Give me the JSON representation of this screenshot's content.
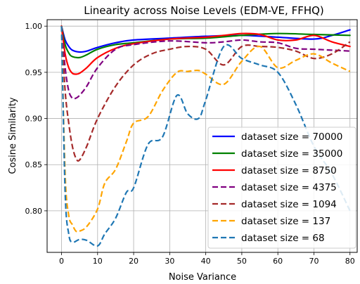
{
  "chart_data": {
    "type": "line",
    "title": "Linearity across Noise Levels (EDM-VE, FFHQ)",
    "xlabel": "Noise Variance",
    "ylabel": "Cosine Similarity",
    "xlim": [
      -4,
      82
    ],
    "ylim": [
      0.755,
      1.007
    ],
    "xticks": [
      0,
      10,
      20,
      30,
      40,
      50,
      60,
      70,
      80
    ],
    "yticks": [
      0.8,
      0.85,
      0.9,
      0.95,
      1.0
    ],
    "ytick_labels": [
      "0.80",
      "0.85",
      "0.90",
      "0.95",
      "1.00"
    ],
    "grid": true,
    "legend_position": "lower-right",
    "series": [
      {
        "name": "dataset size = 70000",
        "color": "#0000ff",
        "dash": "solid",
        "x": [
          0,
          1,
          2,
          3,
          5,
          7,
          10,
          15,
          20,
          30,
          40,
          50,
          60,
          70,
          75,
          80
        ],
        "y": [
          1.0,
          0.985,
          0.978,
          0.974,
          0.972,
          0.973,
          0.977,
          0.982,
          0.985,
          0.987,
          0.989,
          0.99,
          0.988,
          0.986,
          0.99,
          0.996
        ]
      },
      {
        "name": "dataset size = 35000",
        "color": "#008000",
        "dash": "solid",
        "x": [
          0,
          1,
          2,
          3,
          5,
          7,
          10,
          15,
          20,
          30,
          40,
          50,
          60,
          70,
          80
        ],
        "y": [
          1.0,
          0.98,
          0.971,
          0.967,
          0.966,
          0.969,
          0.975,
          0.98,
          0.982,
          0.986,
          0.987,
          0.99,
          0.992,
          0.991,
          0.99
        ]
      },
      {
        "name": "dataset size = 8750",
        "color": "#ff0000",
        "dash": "solid",
        "x": [
          0,
          1,
          2,
          3,
          4,
          5,
          7,
          10,
          15,
          20,
          30,
          40,
          45,
          50,
          55,
          60,
          65,
          70,
          75,
          80
        ],
        "y": [
          1.0,
          0.97,
          0.955,
          0.949,
          0.948,
          0.949,
          0.955,
          0.966,
          0.976,
          0.981,
          0.986,
          0.988,
          0.99,
          0.992,
          0.991,
          0.985,
          0.985,
          0.99,
          0.983,
          0.978
        ]
      },
      {
        "name": "dataset size = 4375",
        "color": "#800080",
        "dash": "dashed",
        "x": [
          0,
          1,
          2,
          3,
          4,
          5,
          7,
          10,
          15,
          20,
          30,
          40,
          45,
          50,
          55,
          60,
          65,
          70,
          75,
          80
        ],
        "y": [
          1.0,
          0.955,
          0.93,
          0.922,
          0.922,
          0.925,
          0.935,
          0.955,
          0.975,
          0.98,
          0.984,
          0.982,
          0.983,
          0.985,
          0.983,
          0.982,
          0.976,
          0.975,
          0.974,
          0.973
        ]
      },
      {
        "name": "dataset size = 1094",
        "color": "#a52a2a",
        "dash": "dashed",
        "x": [
          0,
          1,
          2,
          3,
          4,
          5,
          7,
          10,
          15,
          20,
          25,
          30,
          35,
          40,
          45,
          50,
          55,
          60,
          65,
          70,
          75,
          80
        ],
        "y": [
          1.0,
          0.93,
          0.895,
          0.87,
          0.857,
          0.855,
          0.87,
          0.9,
          0.935,
          0.958,
          0.97,
          0.975,
          0.978,
          0.975,
          0.958,
          0.978,
          0.978,
          0.977,
          0.973,
          0.965,
          0.97,
          0.983
        ]
      },
      {
        "name": "dataset size = 137",
        "color": "#ffa500",
        "dash": "dashed",
        "x": [
          0,
          1,
          2,
          3,
          4,
          5,
          7,
          10,
          12,
          15,
          18,
          20,
          24,
          28,
          32,
          35,
          38,
          40,
          45,
          50,
          55,
          60,
          65,
          70,
          75,
          80
        ],
        "y": [
          1.0,
          0.84,
          0.795,
          0.785,
          0.778,
          0.778,
          0.783,
          0.802,
          0.83,
          0.845,
          0.875,
          0.895,
          0.902,
          0.93,
          0.95,
          0.951,
          0.952,
          0.948,
          0.937,
          0.962,
          0.978,
          0.955,
          0.963,
          0.97,
          0.96,
          0.951
        ]
      },
      {
        "name": "dataset size = 68",
        "color": "#1f77b4",
        "dash": "dashed",
        "x": [
          0,
          1,
          2,
          3,
          5,
          7,
          10,
          12,
          15,
          18,
          20,
          24,
          28,
          32,
          35,
          38,
          40,
          45,
          50,
          55,
          60,
          65,
          70,
          75,
          80
        ],
        "y": [
          1.0,
          0.82,
          0.775,
          0.766,
          0.769,
          0.768,
          0.762,
          0.775,
          0.792,
          0.82,
          0.825,
          0.872,
          0.88,
          0.925,
          0.905,
          0.9,
          0.92,
          0.978,
          0.965,
          0.958,
          0.95,
          0.915,
          0.87,
          0.84,
          0.8
        ]
      }
    ]
  }
}
